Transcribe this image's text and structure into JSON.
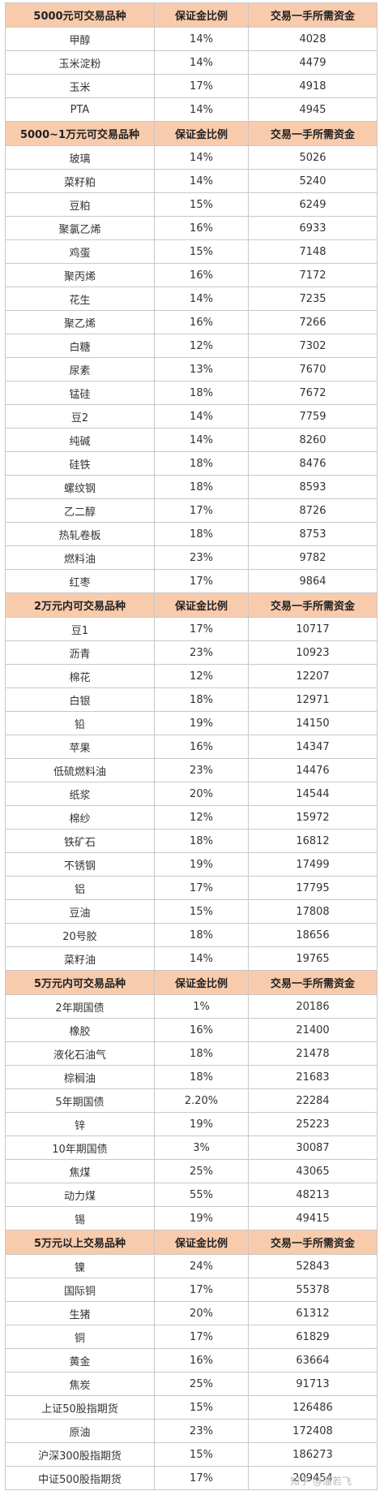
{
  "sections": [
    {
      "header": [
        "5000元可交易品种",
        "保证金比例",
        "交易一手所需资金"
      ],
      "rows": [
        [
          "甲醇",
          "14%",
          "4028"
        ],
        [
          "玉米淀粉",
          "14%",
          "4479"
        ],
        [
          "玉米",
          "17%",
          "4918"
        ],
        [
          "PTA",
          "14%",
          "4945"
        ]
      ]
    },
    {
      "header": [
        "5000~1万元可交易品种",
        "保证金比例",
        "交易一手所需资金"
      ],
      "rows": [
        [
          "玻璃",
          "14%",
          "5026"
        ],
        [
          "菜籽粕",
          "14%",
          "5240"
        ],
        [
          "豆粕",
          "15%",
          "6249"
        ],
        [
          "聚氯乙烯",
          "16%",
          "6933"
        ],
        [
          "鸡蛋",
          "15%",
          "7148"
        ],
        [
          "聚丙烯",
          "16%",
          "7172"
        ],
        [
          "花生",
          "14%",
          "7235"
        ],
        [
          "聚乙烯",
          "16%",
          "7266"
        ],
        [
          "白糖",
          "12%",
          "7302"
        ],
        [
          "尿素",
          "13%",
          "7670"
        ],
        [
          "锰硅",
          "18%",
          "7672"
        ],
        [
          "豆2",
          "14%",
          "7759"
        ],
        [
          "纯碱",
          "14%",
          "8260"
        ],
        [
          "硅铁",
          "18%",
          "8476"
        ],
        [
          "螺纹钢",
          "18%",
          "8593"
        ],
        [
          "乙二醇",
          "17%",
          "8726"
        ],
        [
          "热轧卷板",
          "18%",
          "8753"
        ],
        [
          "燃料油",
          "23%",
          "9782"
        ],
        [
          "红枣",
          "17%",
          "9864"
        ]
      ]
    },
    {
      "header": [
        "2万元内可交易品种",
        "保证金比例",
        "交易一手所需资金"
      ],
      "rows": [
        [
          "豆1",
          "17%",
          "10717"
        ],
        [
          "沥青",
          "23%",
          "10923"
        ],
        [
          "棉花",
          "12%",
          "12207"
        ],
        [
          "白银",
          "18%",
          "12971"
        ],
        [
          "铅",
          "19%",
          "14150"
        ],
        [
          "苹果",
          "16%",
          "14347"
        ],
        [
          "低硫燃料油",
          "23%",
          "14476"
        ],
        [
          "纸浆",
          "20%",
          "14544"
        ],
        [
          "棉纱",
          "12%",
          "15972"
        ],
        [
          "铁矿石",
          "18%",
          "16812"
        ],
        [
          "不锈钢",
          "19%",
          "17499"
        ],
        [
          "铝",
          "17%",
          "17795"
        ],
        [
          "豆油",
          "15%",
          "17808"
        ],
        [
          "20号胶",
          "18%",
          "18656"
        ],
        [
          "菜籽油",
          "14%",
          "19765"
        ]
      ]
    },
    {
      "header": [
        "5万元内可交易品种",
        "保证金比例",
        "交易一手所需资金"
      ],
      "rows": [
        [
          "2年期国债",
          "1%",
          "20186"
        ],
        [
          "橡胶",
          "16%",
          "21400"
        ],
        [
          "液化石油气",
          "18%",
          "21478"
        ],
        [
          "棕榈油",
          "18%",
          "21683"
        ],
        [
          "5年期国债",
          "2.20%",
          "22284"
        ],
        [
          "锌",
          "19%",
          "25223"
        ],
        [
          "10年期国债",
          "3%",
          "30087"
        ],
        [
          "焦煤",
          "25%",
          "43065"
        ],
        [
          "动力煤",
          "55%",
          "48213"
        ],
        [
          "锡",
          "19%",
          "49415"
        ]
      ]
    },
    {
      "header": [
        "5万元以上交易品种",
        "保证金比例",
        "交易一手所需资金"
      ],
      "rows": [
        [
          "镍",
          "24%",
          "52843"
        ],
        [
          "国际铜",
          "17%",
          "55378"
        ],
        [
          "生猪",
          "20%",
          "61312"
        ],
        [
          "铜",
          "17%",
          "61829"
        ],
        [
          "黄金",
          "16%",
          "63664"
        ],
        [
          "焦炭",
          "25%",
          "91713"
        ],
        [
          "上证50股指期货",
          "15%",
          "126486"
        ],
        [
          "原油",
          "23%",
          "172408"
        ],
        [
          "沪深300股指期货",
          "15%",
          "186273"
        ],
        [
          "中证500股指期货",
          "17%",
          "209454"
        ]
      ]
    }
  ],
  "watermark": "知乎 @潘若飞"
}
